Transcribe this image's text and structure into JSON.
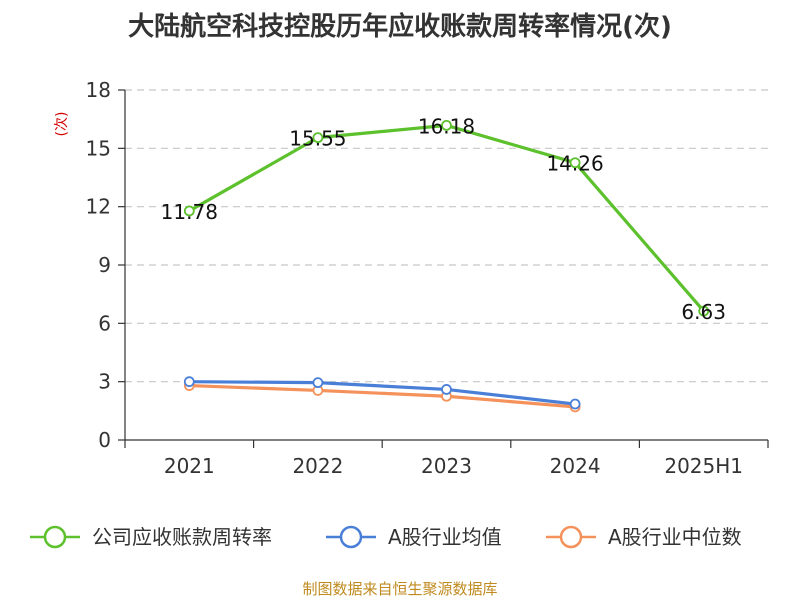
{
  "chart_data": {
    "type": "line",
    "title": "大陆航空科技控股历年应收账款周转率情况(次)",
    "ylabel": "(次)",
    "xlabel": "",
    "categories": [
      "2021",
      "2022",
      "2023",
      "2024",
      "2025H1"
    ],
    "ylim": [
      0,
      18
    ],
    "yticks": [
      0,
      3,
      6,
      9,
      12,
      15,
      18
    ],
    "grid": true,
    "legend_position": "bottom",
    "series": [
      {
        "name": "公司应收账款周转率",
        "color": "#5cc12c",
        "values": [
          11.78,
          15.55,
          16.18,
          14.26,
          6.63
        ],
        "labels": [
          "11.78",
          "15.55",
          "16.18",
          "14.26",
          "6.63"
        ],
        "show_labels": true
      },
      {
        "name": "A股行业均值",
        "color": "#4a7fd8",
        "values": [
          3.0,
          2.95,
          2.6,
          1.85,
          null
        ],
        "show_labels": false
      },
      {
        "name": "A股行业中位数",
        "color": "#f5915a",
        "values": [
          2.8,
          2.55,
          2.25,
          1.7,
          null
        ],
        "show_labels": false
      }
    ],
    "source": "制图数据来自恒生聚源数据库"
  }
}
